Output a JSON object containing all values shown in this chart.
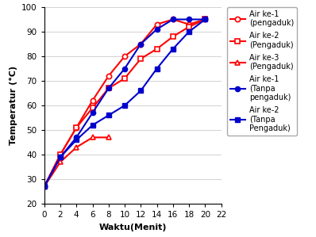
{
  "x": [
    0,
    2,
    4,
    6,
    8,
    10,
    12,
    14,
    16,
    18,
    20
  ],
  "air1_pengaduk": [
    27,
    40,
    51,
    62,
    72,
    80,
    85,
    93,
    95,
    93,
    95
  ],
  "air2_pengaduk": [
    27,
    40,
    51,
    59,
    67,
    71,
    79,
    83,
    88,
    92,
    95
  ],
  "air3_pengaduk": [
    27,
    37,
    43,
    47,
    47,
    null,
    null,
    null,
    null,
    null,
    null
  ],
  "air1_tanpa": [
    27,
    39,
    47,
    57,
    67,
    75,
    85,
    91,
    95,
    95,
    95
  ],
  "air2_tanpa": [
    27,
    39,
    46,
    52,
    56,
    60,
    66,
    75,
    83,
    90,
    95
  ],
  "color_red": "#FF0000",
  "color_blue": "#0000CD",
  "xlabel": "Waktu(Menit)",
  "ylabel": "Temperatur (°C)",
  "xlim": [
    0,
    22
  ],
  "ylim": [
    20,
    100
  ],
  "xticks": [
    0,
    2,
    4,
    6,
    8,
    10,
    12,
    14,
    16,
    18,
    20,
    22
  ],
  "yticks": [
    20,
    30,
    40,
    50,
    60,
    70,
    80,
    90,
    100
  ],
  "legend": [
    "Air ke-1\n(pengaduk)",
    "Air ke-2\n(Pengaduk)",
    "Air ke-3\n(Pengaduk)",
    "Air ke-1\n(Tanpa\npengaduk)",
    "Air ke-2\n(Tanpa\nPengaduk)"
  ]
}
